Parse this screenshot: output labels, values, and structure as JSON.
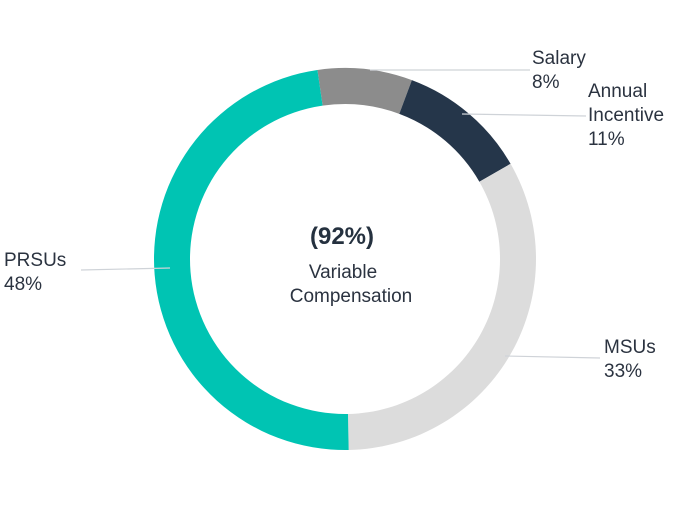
{
  "chart_data": {
    "type": "pie",
    "variant": "donut",
    "center": {
      "value": "(92%)",
      "label_lines": [
        "Variable",
        "Compensation"
      ]
    },
    "slices": [
      {
        "name": "Salary",
        "label_lines": [
          "Salary"
        ],
        "value": 8,
        "value_label": "8%",
        "color": "#8c8c8c"
      },
      {
        "name": "Annual Incentive",
        "label_lines": [
          "Annual",
          "Incentive"
        ],
        "value": 11,
        "value_label": "11%",
        "color": "#25364a"
      },
      {
        "name": "MSUs",
        "label_lines": [
          "MSUs"
        ],
        "value": 33,
        "value_label": "33%",
        "color": "#dcdcdc"
      },
      {
        "name": "PRSUs",
        "label_lines": [
          "PRSUs"
        ],
        "value": 48,
        "value_label": "48%",
        "color": "#00c4b3"
      }
    ]
  }
}
